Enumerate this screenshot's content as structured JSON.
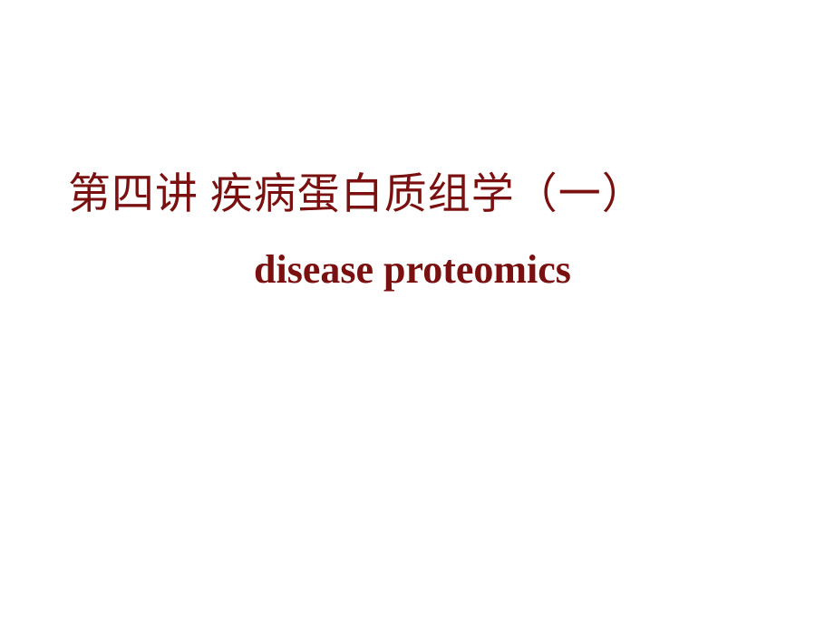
{
  "slide": {
    "title": "第四讲 疾病蛋白质组学（一）",
    "subtitle": "disease proteomics",
    "title_color": "#7a1010",
    "subtitle_color": "#7a1010",
    "background_color": "#ffffff",
    "title_fontsize": 47,
    "subtitle_fontsize": 44,
    "title_fontweight": "normal",
    "subtitle_fontweight": "bold",
    "title_fontfamily": "SimSun",
    "subtitle_fontfamily": "Times New Roman"
  }
}
